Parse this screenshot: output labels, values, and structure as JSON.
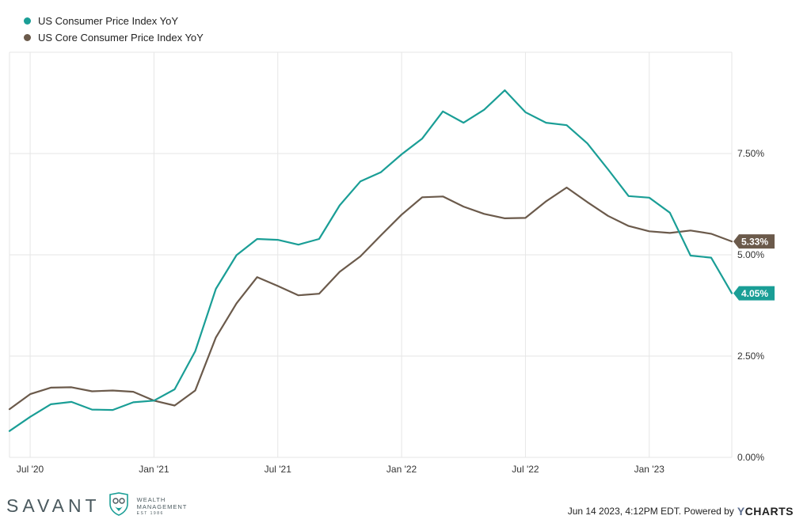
{
  "chart_data": {
    "type": "line",
    "x": [
      "2020-06",
      "2020-07",
      "2020-08",
      "2020-09",
      "2020-10",
      "2020-11",
      "2020-12",
      "2021-01",
      "2021-02",
      "2021-03",
      "2021-04",
      "2021-05",
      "2021-06",
      "2021-07",
      "2021-08",
      "2021-09",
      "2021-10",
      "2021-11",
      "2021-12",
      "2022-01",
      "2022-02",
      "2022-03",
      "2022-04",
      "2022-05",
      "2022-06",
      "2022-07",
      "2022-08",
      "2022-09",
      "2022-10",
      "2022-11",
      "2022-12",
      "2023-01",
      "2023-02",
      "2023-03",
      "2023-04",
      "2023-05"
    ],
    "xticks": [
      {
        "label": "Jul '20",
        "x": "2020-07"
      },
      {
        "label": "Jan '21",
        "x": "2021-01"
      },
      {
        "label": "Jul '21",
        "x": "2021-07"
      },
      {
        "label": "Jan '22",
        "x": "2022-01"
      },
      {
        "label": "Jul '22",
        "x": "2022-07"
      },
      {
        "label": "Jan '23",
        "x": "2023-01"
      }
    ],
    "yticks": [
      {
        "label": "0.00%",
        "value": 0
      },
      {
        "label": "2.50%",
        "value": 2.5
      },
      {
        "label": "5.00%",
        "value": 5.0
      },
      {
        "label": "7.50%",
        "value": 7.5
      }
    ],
    "ylim": [
      0,
      10
    ],
    "grid": true,
    "legend_position": "top-left",
    "series": [
      {
        "name": "US Consumer Price Index YoY",
        "color": "#1a9e96",
        "end_label": "4.05%",
        "values": [
          0.65,
          1.0,
          1.31,
          1.37,
          1.18,
          1.17,
          1.36,
          1.4,
          1.68,
          2.62,
          4.16,
          4.99,
          5.39,
          5.37,
          5.25,
          5.39,
          6.22,
          6.81,
          7.04,
          7.48,
          7.87,
          8.54,
          8.26,
          8.58,
          9.06,
          8.52,
          8.26,
          8.2,
          7.75,
          7.11,
          6.45,
          6.41,
          6.04,
          4.98,
          4.93,
          4.05
        ]
      },
      {
        "name": "US Core Consumer Price Index YoY",
        "color": "#6b5a4b",
        "end_label": "5.33%",
        "values": [
          1.19,
          1.56,
          1.72,
          1.73,
          1.63,
          1.65,
          1.62,
          1.4,
          1.28,
          1.65,
          2.96,
          3.8,
          4.45,
          4.23,
          4.0,
          4.04,
          4.58,
          4.96,
          5.48,
          5.99,
          6.42,
          6.44,
          6.19,
          6.01,
          5.9,
          5.91,
          6.32,
          6.66,
          6.3,
          5.96,
          5.71,
          5.58,
          5.54,
          5.6,
          5.52,
          5.33
        ]
      }
    ]
  },
  "footer": {
    "brand_name": "SAVANT",
    "brand_line1": "WEALTH",
    "brand_line2": "MANAGEMENT",
    "brand_est": "EST 1986",
    "credit_text": "Jun 14 2023, 4:12PM EDT. Powered by",
    "credit_logo_y": "Y",
    "credit_logo_rest": "CHARTS"
  },
  "colors": {
    "grid": "#e6e6e6",
    "axis_text": "#333333",
    "brand": "#4b5a5f",
    "brand_accent": "#1a9e96"
  }
}
